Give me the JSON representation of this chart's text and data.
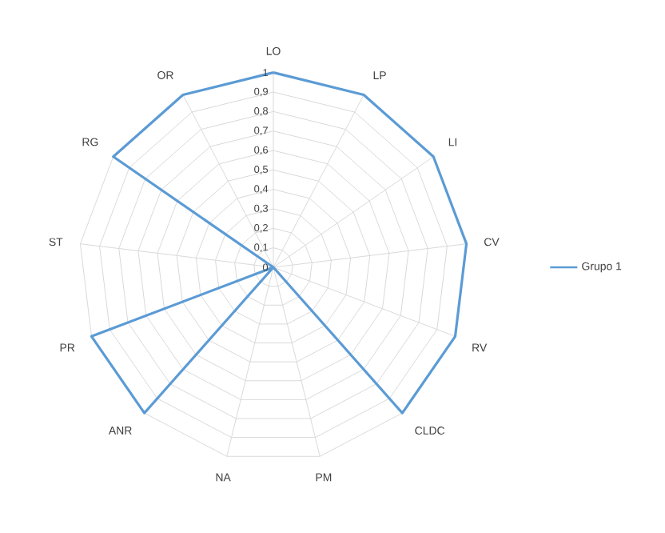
{
  "chart_data": {
    "type": "radar",
    "categories": [
      "LO",
      "LP",
      "LI",
      "CV",
      "RV",
      "CLDC",
      "PM",
      "NA",
      "ANR",
      "PR",
      "ST",
      "RG",
      "OR"
    ],
    "series": [
      {
        "name": "Grupo 1",
        "color": "#5b9bd5",
        "values": [
          1,
          1,
          1,
          1,
          1,
          1,
          0,
          0,
          1,
          1,
          0,
          1,
          1
        ]
      }
    ],
    "ylim": [
      0,
      1
    ],
    "yticks": [
      0,
      {
        "value": 0.1,
        "label": "0,1"
      },
      {
        "value": 0.2,
        "label": "0,2"
      },
      {
        "value": 0.3,
        "label": "0,3"
      },
      {
        "value": 0.4,
        "label": "0,4"
      },
      {
        "value": 0.5,
        "label": "0,5"
      },
      {
        "value": 0.6,
        "label": "0,6"
      },
      {
        "value": 0.7,
        "label": "0,7"
      },
      {
        "value": 0.8,
        "label": "0,8"
      },
      {
        "value": 0.9,
        "label": "0,9"
      },
      1
    ],
    "grid": true,
    "legend": "right"
  }
}
